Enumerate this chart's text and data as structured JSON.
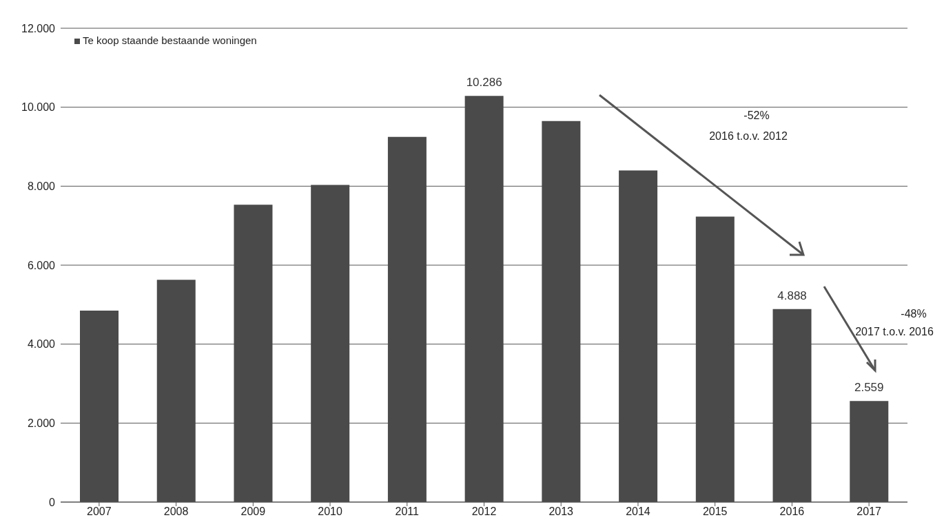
{
  "chart_data": {
    "type": "bar",
    "categories": [
      "2007",
      "2008",
      "2009",
      "2010",
      "2011",
      "2012",
      "2013",
      "2014",
      "2015",
      "2016",
      "2017"
    ],
    "series": [
      {
        "name": "Te koop staande bestaande woningen",
        "color": "#4a4a4a",
        "values": [
          4850,
          5630,
          7530,
          8030,
          9250,
          10286,
          9650,
          8400,
          7230,
          4888,
          2559
        ],
        "value_labels": [
          null,
          null,
          null,
          null,
          null,
          "10.286",
          null,
          null,
          null,
          "4.888",
          "2.559"
        ]
      }
    ],
    "ylim": [
      0,
      12000
    ],
    "yticks": [
      {
        "value": 0,
        "label": "0"
      },
      {
        "value": 2000,
        "label": "2.000"
      },
      {
        "value": 4000,
        "label": "4.000"
      },
      {
        "value": 6000,
        "label": "6.000"
      },
      {
        "value": 8000,
        "label": "8.000"
      },
      {
        "value": 10000,
        "label": "10.000"
      },
      {
        "value": 12000,
        "label": "12.000"
      }
    ],
    "grid": "y",
    "legend": "top left",
    "annotations": [
      "-52%",
      "2016 t.o.v. 2012",
      "-48%",
      "2017 t.o.v. 2016"
    ]
  }
}
